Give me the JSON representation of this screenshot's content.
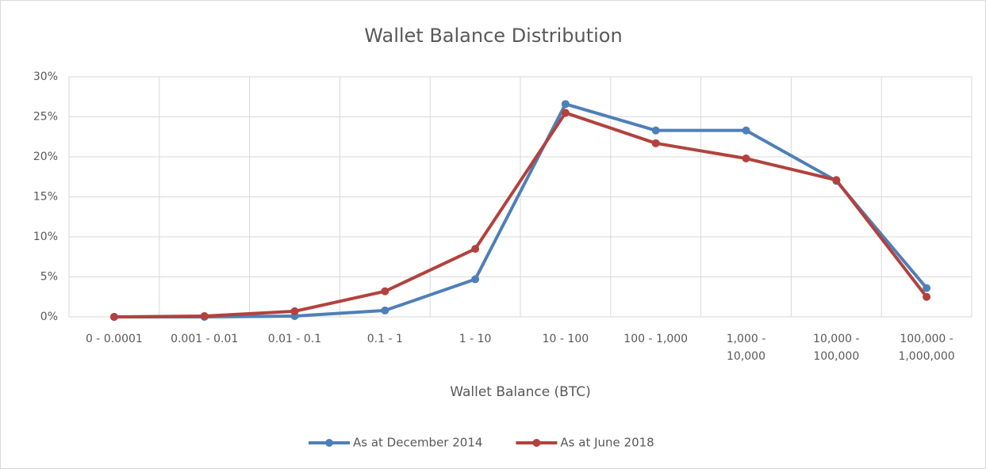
{
  "chart_data": {
    "type": "line",
    "title": "Wallet Balance Distribution",
    "x_label": "Wallet Balance (BTC)",
    "categories": [
      "0 - 0.0001",
      "0.001 - 0.01",
      "0.01 - 0.1",
      "0.1 - 1",
      "1 - 10",
      "10 - 100",
      "100 - 1,000",
      "1,000 - 10,000",
      "10,000 - 100,000",
      "100,000 - 1,000,000"
    ],
    "series": [
      {
        "name": "As at December 2014",
        "color": "#4f7fb8",
        "values": [
          0,
          0,
          0.1,
          0.8,
          4.7,
          26.6,
          23.3,
          23.3,
          17.0,
          3.6
        ]
      },
      {
        "name": "As at June 2018",
        "color": "#b2423d",
        "values": [
          0,
          0.1,
          0.7,
          3.2,
          8.5,
          25.5,
          21.7,
          19.8,
          17.1,
          2.5
        ]
      }
    ],
    "ylim": [
      0,
      30
    ],
    "yticks": [
      {
        "value": 0,
        "label": "0%"
      },
      {
        "value": 5,
        "label": "5%"
      },
      {
        "value": 10,
        "label": "10%"
      },
      {
        "value": 15,
        "label": "15%"
      },
      {
        "value": 20,
        "label": "20%"
      },
      {
        "value": 25,
        "label": "25%"
      },
      {
        "value": 30,
        "label": "30%"
      }
    ],
    "grid": true,
    "legend": "bottom"
  }
}
